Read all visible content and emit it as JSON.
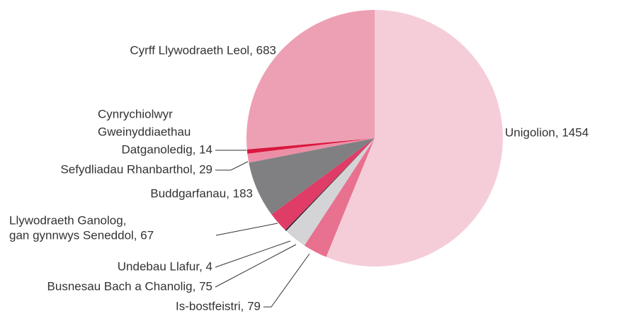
{
  "chart_data": {
    "type": "pie",
    "labels": [
      [
        "Unigolion, 1454"
      ],
      [
        "Is-bostfeistri, 79"
      ],
      [
        "Busnesau Bach a Chanolig, 75"
      ],
      [
        "Undebau Llafur, 4"
      ],
      [
        "Llywodraeth Ganolog,",
        "gan gynnwys Seneddol, 67"
      ],
      [
        "Buddgarfanau, 183"
      ],
      [
        "Sefydliadau Rhanbarthol, 29"
      ],
      [
        "Cynrychiolwyr",
        "Gweinyddiaethau",
        "Datganoledig, 14"
      ],
      [
        "Cyrff Llywodraeth Leol, 683"
      ]
    ],
    "values": [
      1454,
      79,
      75,
      4,
      67,
      183,
      29,
      14,
      683
    ],
    "colors": [
      "#f5cdd8",
      "#e8718f",
      "#d4d4d6",
      "#222222",
      "#e03c68",
      "#808083",
      "#ec8fa6",
      "#d9183f",
      "#eda0b3"
    ]
  }
}
